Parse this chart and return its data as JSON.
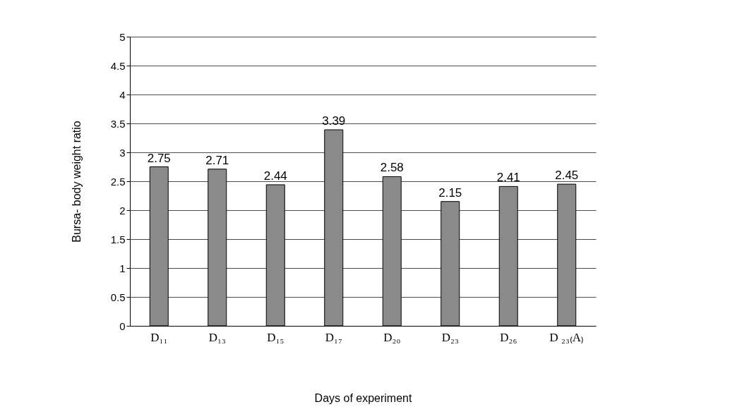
{
  "chart_data": {
    "type": "bar",
    "xlabel": "Days of experiment",
    "ylabel": "Bursa- body weight  ratio",
    "categories": [
      "D₁₁",
      "D₁₃",
      "D₁₅",
      "D₁₇",
      "D₂₀",
      "D₂₃",
      "D₂₆",
      "D ₂₃₍A₎"
    ],
    "values": [
      2.75,
      2.71,
      2.44,
      3.39,
      2.58,
      2.15,
      2.41,
      2.45
    ],
    "color": "#8a8a8a",
    "ylim": [
      0,
      5
    ],
    "yticks": [
      0,
      0.5,
      1,
      1.5,
      2,
      2.5,
      3,
      3.5,
      4,
      4.5,
      5
    ],
    "grid": "y",
    "data_labels": true
  }
}
